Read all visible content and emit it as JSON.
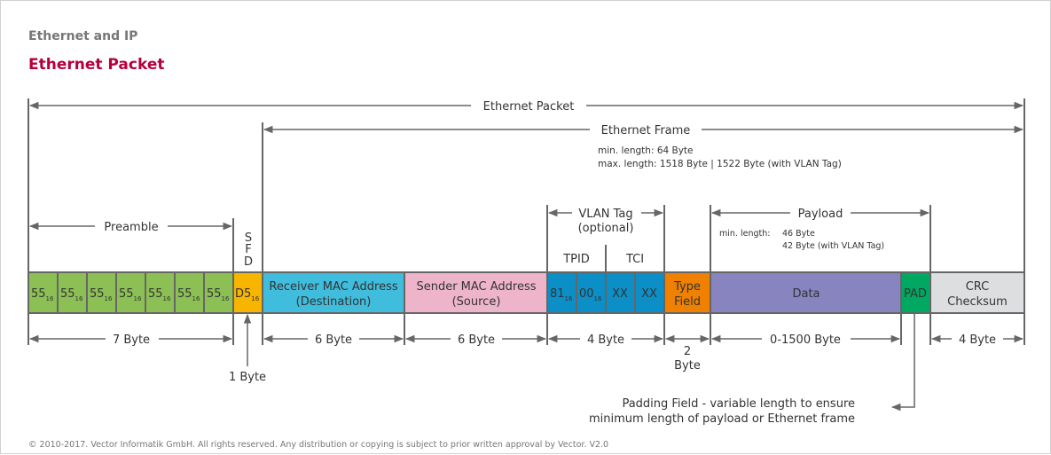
{
  "header": {
    "section": "Ethernet and IP",
    "title": "Ethernet Packet",
    "title_color": "#b4003b"
  },
  "labels": {
    "packet": "Ethernet Packet",
    "frame": "Ethernet Frame",
    "frame_min": "min. length: 64 Byte",
    "frame_max": "max. length: 1518 Byte | 1522 Byte (with VLAN Tag)",
    "preamble": "Preamble",
    "sfd": [
      "S",
      "F",
      "D"
    ],
    "vlan": "VLAN Tag",
    "vlan_opt": "(optional)",
    "tpid": "TPID",
    "tci": "TCI",
    "payload": "Payload",
    "payload_min_label": "min. length:",
    "payload_min1": "46 Byte",
    "payload_min2": "42 Byte (with VLAN Tag)",
    "padding_1": "Padding Field - variable length to ensure",
    "padding_2": "minimum length of payload or Ethernet frame"
  },
  "fields": {
    "preamble_byte": "55",
    "sub": "16",
    "sfd": "D5",
    "receiver_1": "Receiver MAC Address",
    "receiver_2": "(Destination)",
    "sender_1": "Sender MAC Address",
    "sender_2": "(Source)",
    "tpid_1": "81",
    "tpid_2": "00",
    "tci_1": "XX",
    "tci_2": "XX",
    "type_1": "Type",
    "type_2": "Field",
    "data": "Data",
    "pad": "PAD",
    "crc_1": "CRC",
    "crc_2": "Checksum"
  },
  "sizes": {
    "preamble": "7 Byte",
    "sfd": "1 Byte",
    "receiver": "6 Byte",
    "sender": "6 Byte",
    "vlan": "4 Byte",
    "type_1": "2",
    "type_2": "Byte",
    "payload": "0-1500 Byte",
    "crc": "4 Byte"
  },
  "colors": {
    "preamble": "#8cc055",
    "sfd": "#f8b500",
    "receiver": "#40bcdc",
    "sender": "#eeb5ca",
    "vlan": "#0b8fc6",
    "type": "#f08000",
    "data": "#8884c0",
    "pad": "#00a862",
    "crc": "#dcdee0"
  },
  "footer": "© 2010-2017. Vector Informatik GmbH. All rights reserved. Any distribution or copying is subject to prior written approval by Vector. V2.0"
}
